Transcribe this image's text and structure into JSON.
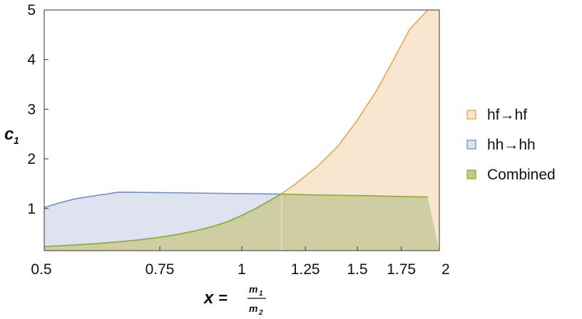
{
  "chart_data": {
    "type": "area",
    "xscale": "log",
    "xlim": [
      0.5,
      2
    ],
    "ylim": [
      0.15,
      5
    ],
    "x_ticks": [
      {
        "value": 0.5,
        "label": "0.5"
      },
      {
        "value": 0.75,
        "label": "0.75"
      },
      {
        "value": 1,
        "label": "1"
      },
      {
        "value": 1.25,
        "label": "1.25"
      },
      {
        "value": 1.5,
        "label": "1.5"
      },
      {
        "value": 1.75,
        "label": "1.75"
      },
      {
        "value": 2,
        "label": "2"
      }
    ],
    "y_ticks": [
      {
        "value": 1,
        "label": "1"
      },
      {
        "value": 2,
        "label": "2"
      },
      {
        "value": 3,
        "label": "3"
      },
      {
        "value": 4,
        "label": "4"
      },
      {
        "value": 5,
        "label": "5"
      }
    ],
    "xlabel": {
      "var": "x",
      "eq": "=",
      "numerator": "m",
      "numerator_sub": "1",
      "denominator": "m",
      "denominator_sub": "2"
    },
    "ylabel": {
      "var": "c",
      "sub": "1"
    },
    "grid": false,
    "legend_position": "right",
    "series": [
      {
        "name": "hf→hf",
        "line_color": "#e3a940",
        "fill_color": "#f8e6d1",
        "x": [
          0.5,
          0.55,
          0.6,
          0.65,
          0.7,
          0.75,
          0.8,
          0.85,
          0.9,
          0.95,
          1.0,
          1.05,
          1.1,
          1.15,
          1.2,
          1.3,
          1.4,
          1.5,
          1.6,
          1.7,
          1.8,
          1.92
        ],
        "y": [
          0.23,
          0.26,
          0.29,
          0.33,
          0.37,
          0.42,
          0.48,
          0.55,
          0.63,
          0.73,
          0.86,
          1.0,
          1.15,
          1.3,
          1.47,
          1.83,
          2.25,
          2.78,
          3.35,
          3.98,
          4.6,
          5.0
        ]
      },
      {
        "name": "hh→hh",
        "line_color": "#6f8fc4",
        "fill_color": "#dfe3ef",
        "x": [
          0.5,
          0.53,
          0.56,
          0.65,
          1.15,
          1.3,
          1.5,
          1.75,
          1.92
        ],
        "y": [
          1.02,
          1.12,
          1.2,
          1.33,
          1.29,
          1.27,
          1.26,
          1.24,
          1.23
        ]
      },
      {
        "name": "Combined",
        "line_color": "#8fb034",
        "fill_color": "#cfcda3",
        "legend_swatch_color": "#b8cf80"
      }
    ],
    "intersection": {
      "x": 1.15,
      "y": 1.3
    }
  }
}
